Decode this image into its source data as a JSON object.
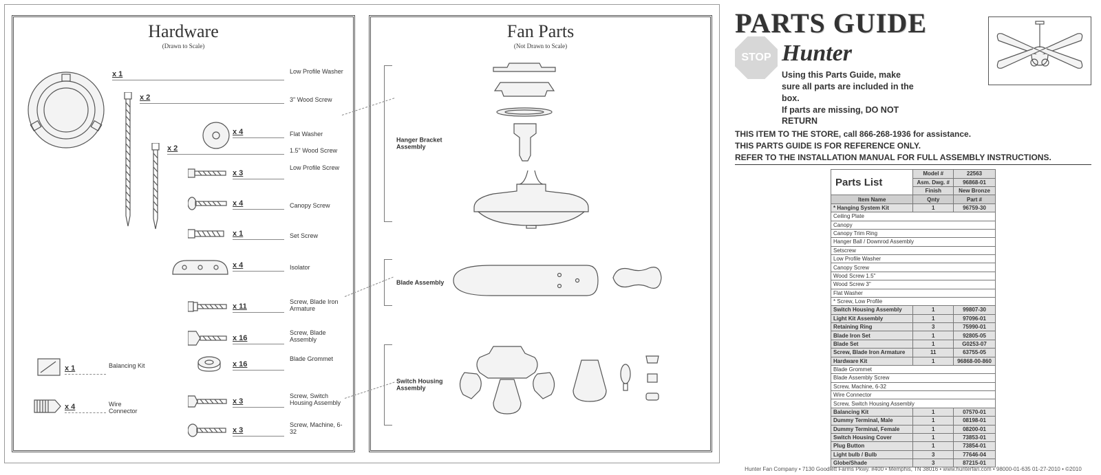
{
  "hardware_section": {
    "title": "Hardware",
    "subtitle": "(Drawn to Scale)",
    "items": [
      {
        "qty": "x 1",
        "label": "Low Profile Washer"
      },
      {
        "qty": "x 2",
        "label": "3\" Wood Screw"
      },
      {
        "qty": "x 4",
        "label": "Flat Washer"
      },
      {
        "qty": "x 2",
        "label": "1.5\" Wood Screw"
      },
      {
        "qty": "x 3",
        "label": "Low Profile Screw"
      },
      {
        "qty": "x 4",
        "label": "Canopy Screw"
      },
      {
        "qty": "x 1",
        "label": "Set Screw"
      },
      {
        "qty": "x 4",
        "label": "Isolator"
      },
      {
        "qty": "x 11",
        "label": "Screw, Blade Iron Armature"
      },
      {
        "qty": "x 16",
        "label": "Screw, Blade Assembly"
      },
      {
        "qty": "x 16",
        "label": "Blade Grommet"
      },
      {
        "qty": "x 3",
        "label": "Screw, Switch Housing Assembly"
      },
      {
        "qty": "x 3",
        "label": "Screw, Machine, 6-32"
      }
    ],
    "left_extras": [
      {
        "qty": "x 1",
        "label": "Balancing Kit"
      },
      {
        "qty": "x 4",
        "label": "Wire Connector"
      }
    ]
  },
  "fanparts_section": {
    "title": "Fan Parts",
    "subtitle": "(Not Drawn to Scale)",
    "groups": [
      {
        "label": "Hanger Bracket Assembly"
      },
      {
        "label": "Blade Assembly"
      },
      {
        "label": "Switch Housing Assembly"
      }
    ]
  },
  "guide": {
    "title": "PARTS GUIDE",
    "brand": "Hunter",
    "stop": "STOP",
    "intro1": "Using this Parts Guide, make sure all parts are included in the box.",
    "intro2": "If parts are missing, DO NOT RETURN",
    "line1": "THIS ITEM TO THE STORE, call 866-268-1936 for assistance.",
    "line2": "THIS PARTS GUIDE IS FOR REFERENCE ONLY.",
    "line3": "REFER TO THE INSTALLATION MANUAL FOR FULL ASSEMBLY INSTRUCTIONS."
  },
  "parts_list": {
    "title": "Parts List",
    "meta_labels": {
      "model": "Model #",
      "asm": "Asm. Dwg. #",
      "finish": "Finish"
    },
    "meta_values": {
      "model": "22563",
      "asm": "96868-01",
      "finish": "New Bronze"
    },
    "col_headers": {
      "name": "Item Name",
      "qty": "Qnty",
      "part": "Part #"
    },
    "rows": [
      {
        "name": "* Hanging System Kit",
        "qty": "1",
        "part": "96759-30",
        "shade": true
      },
      {
        "name": "Ceiling Plate",
        "qty": "",
        "part": "",
        "shade": false
      },
      {
        "name": "Canopy",
        "qty": "",
        "part": "",
        "shade": false
      },
      {
        "name": "Canopy Trim Ring",
        "qty": "",
        "part": "",
        "shade": false
      },
      {
        "name": "Hanger Ball / Downrod Assembly",
        "qty": "",
        "part": "",
        "shade": false
      },
      {
        "name": "Setscrew",
        "qty": "",
        "part": "",
        "shade": false
      },
      {
        "name": "Low Profile Washer",
        "qty": "",
        "part": "",
        "shade": false
      },
      {
        "name": "Canopy Screw",
        "qty": "",
        "part": "",
        "shade": false
      },
      {
        "name": "Wood Screw 1.5\"",
        "qty": "",
        "part": "",
        "shade": false
      },
      {
        "name": "Wood Screw 3\"",
        "qty": "",
        "part": "",
        "shade": false
      },
      {
        "name": "Flat Washer",
        "qty": "",
        "part": "",
        "shade": false
      },
      {
        "name": "* Screw, Low Profile",
        "qty": "",
        "part": "",
        "shade": false
      },
      {
        "name": "Switch Housing Assembly",
        "qty": "1",
        "part": "99807-30",
        "shade": true
      },
      {
        "name": "Light Kit Assembly",
        "qty": "1",
        "part": "97096-01",
        "shade": true
      },
      {
        "name": "Retaining Ring",
        "qty": "3",
        "part": "75990-01",
        "shade": true
      },
      {
        "name": "Blade Iron Set",
        "qty": "1",
        "part": "92805-05",
        "shade": true
      },
      {
        "name": "Blade Set",
        "qty": "1",
        "part": "G0253-07",
        "shade": true
      },
      {
        "name": "Screw, Blade Iron Armature",
        "qty": "11",
        "part": "63755-05",
        "shade": true
      },
      {
        "name": "Hardware Kit",
        "qty": "1",
        "part": "96868-00-860",
        "shade": true
      },
      {
        "name": "Blade Grommet",
        "qty": "",
        "part": "",
        "shade": false
      },
      {
        "name": "Blade Assembly Screw",
        "qty": "",
        "part": "",
        "shade": false
      },
      {
        "name": "Screw, Machine, 6-32",
        "qty": "",
        "part": "",
        "shade": false
      },
      {
        "name": "Wire Connector",
        "qty": "",
        "part": "",
        "shade": false
      },
      {
        "name": "Screw, Switch Housing Assembly",
        "qty": "",
        "part": "",
        "shade": false
      },
      {
        "name": "Balancing Kit",
        "qty": "1",
        "part": "07570-01",
        "shade": true
      },
      {
        "name": "Dummy Terminal, Male",
        "qty": "1",
        "part": "08198-01",
        "shade": true
      },
      {
        "name": "Dummy Terminal, Female",
        "qty": "1",
        "part": "08200-01",
        "shade": true
      },
      {
        "name": "Switch Housing Cover",
        "qty": "1",
        "part": "73853-01",
        "shade": true
      },
      {
        "name": "Plug Button",
        "qty": "1",
        "part": "73854-01",
        "shade": true
      },
      {
        "name": "Light bulb / Bulb",
        "qty": "3",
        "part": "77646-04",
        "shade": true
      },
      {
        "name": "Globe/Shade",
        "qty": "3",
        "part": "87215-01",
        "shade": true
      }
    ]
  },
  "footer": "Hunter Fan Company  •  7130 Goodlett Farms Pkwy. #400  •  Memphis, TN 38016  •  www.hunterfan.com  •  98000-01-635  01-27-2010  •  ©2010",
  "colors": {
    "border": "#999999",
    "text": "#333333",
    "shade": "#e2e2e2",
    "hdr": "#cfcfcf",
    "stop_bg": "#d7d7d7",
    "line": "#888888"
  }
}
